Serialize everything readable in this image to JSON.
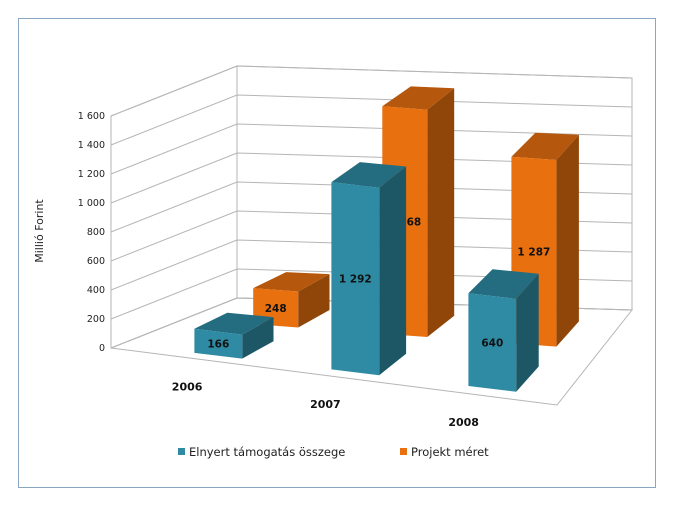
{
  "chart_data": {
    "type": "bar",
    "subtype": "3d-clustered-column",
    "title": "",
    "xlabel": "",
    "ylabel": "Millió Forint",
    "ylim": [
      0,
      1600
    ],
    "yticks": [
      0,
      200,
      400,
      600,
      800,
      1000,
      1200,
      1400,
      1600
    ],
    "ytick_labels": [
      "0",
      "200",
      "400",
      "600",
      "800",
      "1 000",
      "1 200",
      "1 400",
      "1 600"
    ],
    "categories": [
      "2006",
      "2007",
      "2008"
    ],
    "grid": true,
    "legend_position": "bottom",
    "series": [
      {
        "name": "Elnyert támogatás összege",
        "values": [
          166,
          1292,
          640
        ],
        "value_labels": [
          "166",
          "1 292",
          "640"
        ],
        "color": "#2e8ba3"
      },
      {
        "name": "Projekt méret",
        "values": [
          248,
          1568,
          1287
        ],
        "value_labels": [
          "248",
          "1 568",
          "1 287"
        ],
        "color": "#e8700f"
      }
    ]
  }
}
